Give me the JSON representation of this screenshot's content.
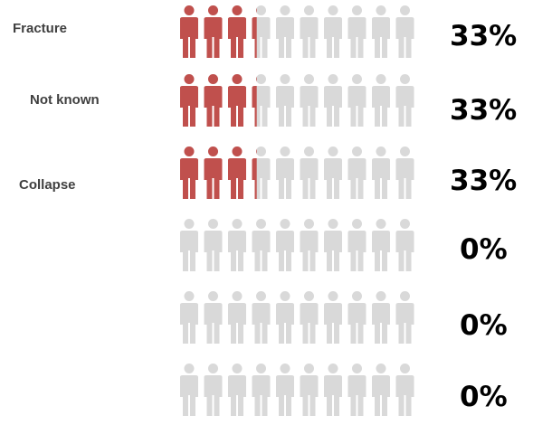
{
  "chart_data": {
    "type": "pictogram",
    "icons_per_row": 10,
    "colors": {
      "filled": "#c0504d",
      "empty": "#d9d9d9"
    },
    "rows": [
      {
        "label": "Fracture",
        "percent_label": "33%",
        "value": 0.33
      },
      {
        "label": "Not known",
        "percent_label": "33%",
        "value": 0.33
      },
      {
        "label": "Collapse",
        "percent_label": "33%",
        "value": 0.33
      },
      {
        "label": "",
        "percent_label": "0%",
        "value": 0
      },
      {
        "label": "",
        "percent_label": "0%",
        "value": 0
      },
      {
        "label": "",
        "percent_label": "0%",
        "value": 0
      }
    ]
  }
}
